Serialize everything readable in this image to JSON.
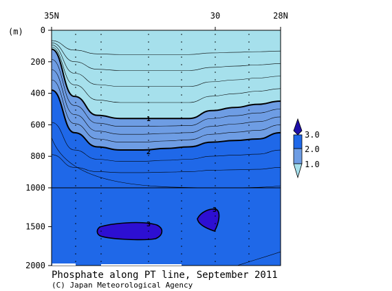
{
  "chart_data": {
    "type": "contour",
    "title": "Phosphate along PT line, September 2011",
    "credit": "(C) Japan Meteorological Agency",
    "ylabel": "(m)",
    "x_ticks": [
      "35N",
      "30",
      "28N"
    ],
    "y_ticks_upper": [
      "0",
      "200",
      "400",
      "600",
      "800",
      "1000"
    ],
    "y_ticks_lower": [
      "1500",
      "2000"
    ],
    "y_break_at": 1000,
    "ylim": [
      0,
      2000
    ],
    "legend": {
      "levels": [
        1.0,
        2.0,
        3.0
      ],
      "labels": [
        "3.0",
        "2.0",
        "1.0"
      ],
      "placement": "right"
    },
    "contour_labels": [
      "1",
      "2",
      "3",
      "3"
    ],
    "boundaries": [
      {
        "level": 1,
        "depth_m": [
          120,
          420,
          540,
          560,
          560,
          560,
          560,
          510,
          490,
          470,
          450
        ]
      },
      {
        "level": 2,
        "depth_m": [
          380,
          650,
          740,
          760,
          760,
          750,
          740,
          710,
          700,
          690,
          650
        ]
      }
    ],
    "colors": {
      "below_1": "#a6e0ec",
      "between_1_2": "#6e9de4",
      "between_2_3": "#1f68e8",
      "above_3": "#2d0fd2",
      "legend_top": "#1e0fa8"
    }
  }
}
